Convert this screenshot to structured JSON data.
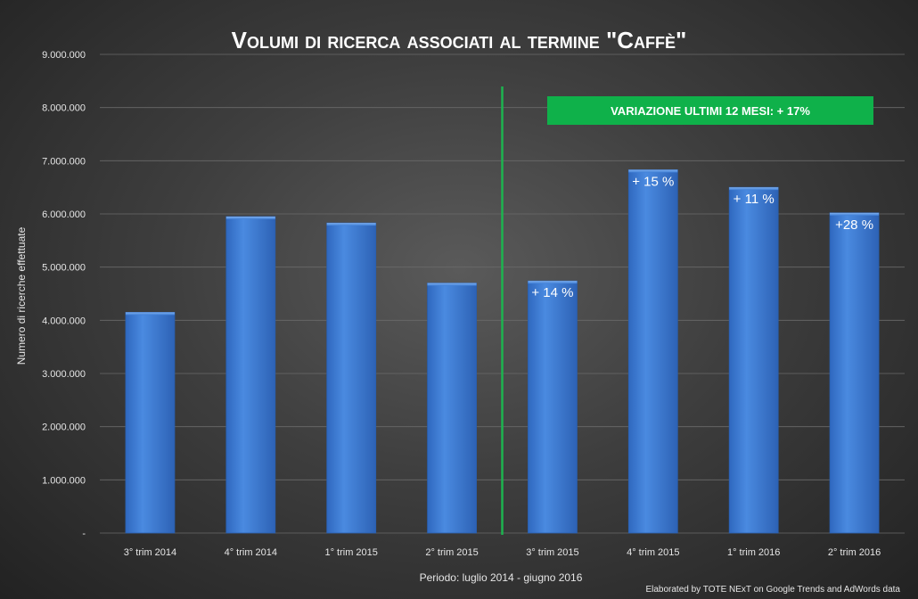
{
  "chart_data": {
    "type": "bar",
    "title": "Volumi di ricerca associati al termine \"Caffè\"",
    "categories": [
      "3° trim 2014",
      "4° trim 2014",
      "1° trim 2015",
      "2° trim 2015",
      "3° trim 2015",
      "4° trim 2015",
      "1° trim 2016",
      "2° trim 2016"
    ],
    "series": [
      {
        "values": [
          4150000,
          5950000,
          5830000,
          4700000,
          4740000,
          6830000,
          6500000,
          6020000
        ]
      }
    ],
    "bar_annotations": [
      "",
      "",
      "",
      "",
      "+ 14 %",
      "+ 15 %",
      "+ 11 %",
      "+28 %"
    ],
    "ylim": [
      0,
      9000000
    ],
    "yticks": [
      0,
      1000000,
      2000000,
      3000000,
      4000000,
      5000000,
      6000000,
      7000000,
      8000000,
      9000000
    ],
    "ytick_labels": [
      "-",
      "1.000.000",
      "2.000.000",
      "3.000.000",
      "4.000.000",
      "5.000.000",
      "6.000.000",
      "7.000.000",
      "8.000.000",
      "9.000.000"
    ],
    "xlabel": "Periodo: luglio 2014 - giugno 2016",
    "ylabel": "Numero di ricerche effettuate",
    "grid": true,
    "divider_after_category": "2° trim 2015",
    "banner": "VARIAZIONE ULTIMI 12 MESI: + 17%",
    "credit": "Elaborated by TOTE NExT on Google Trends and AdWords data",
    "colors": {
      "bar": "#3f7fd6",
      "bar_dark": "#2a5fae",
      "divider": "#1db34f",
      "banner": "#0fb14a",
      "grid": "#6a6a6a"
    }
  }
}
